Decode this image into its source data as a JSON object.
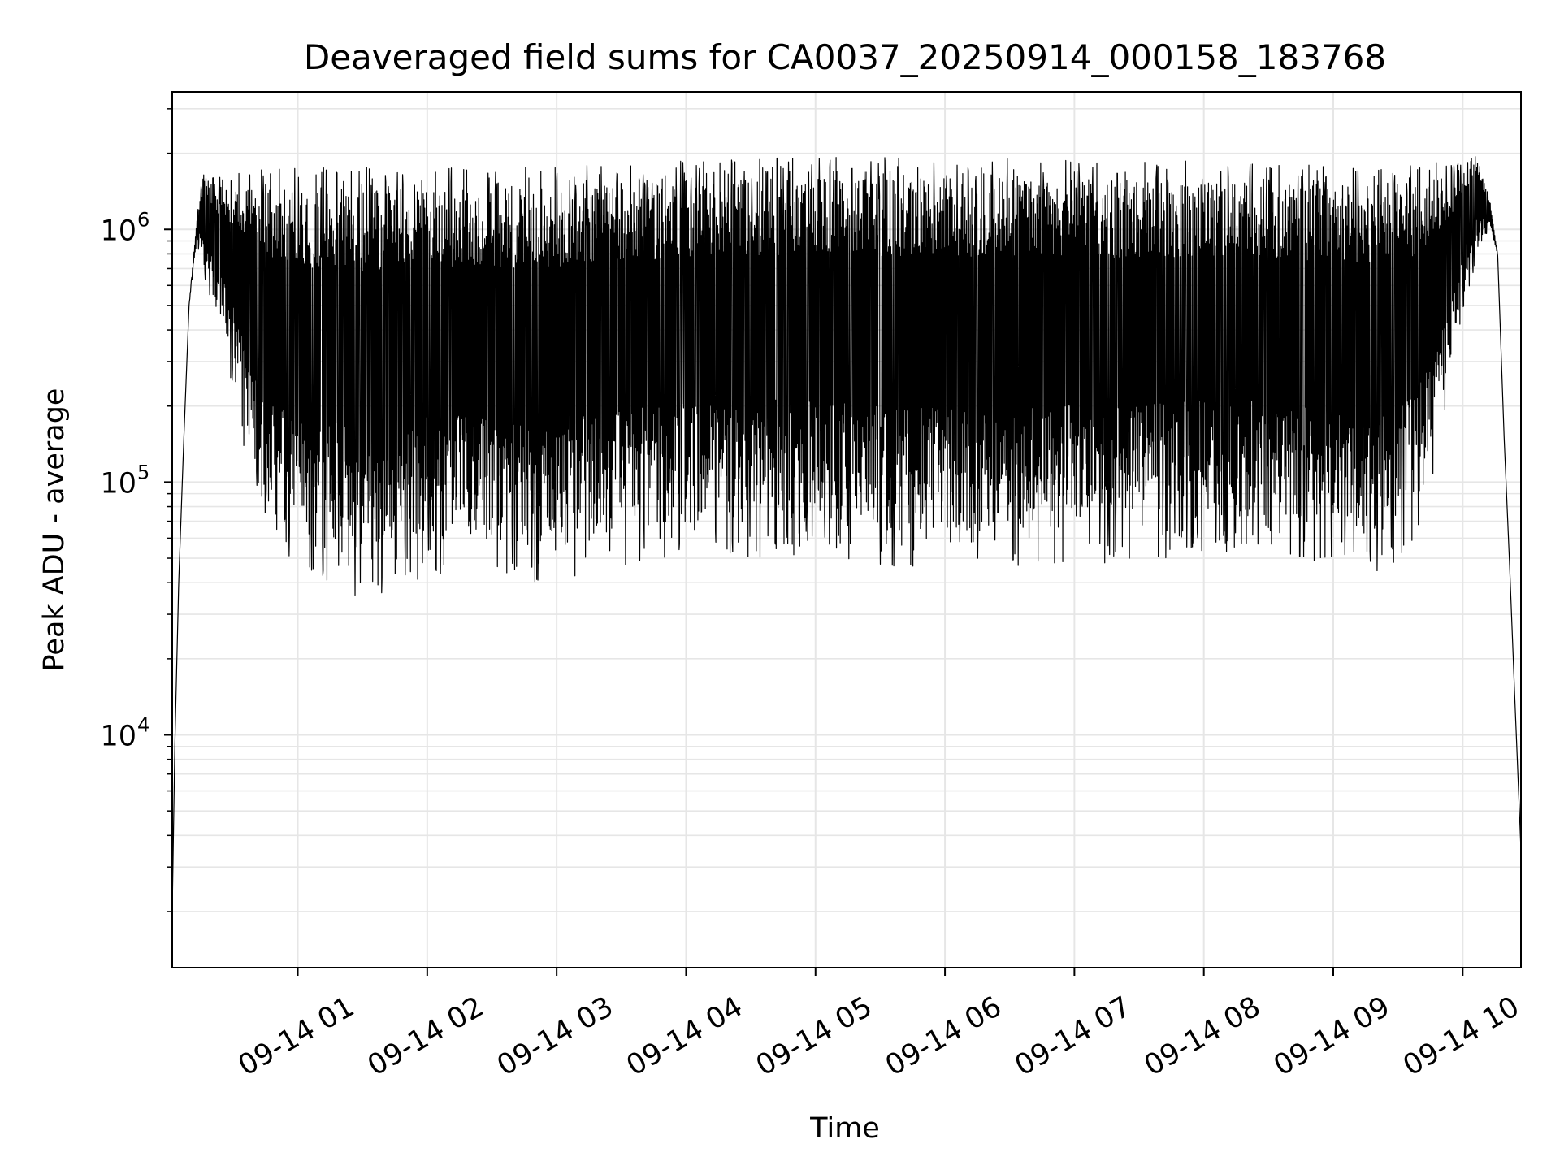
{
  "chart_data": {
    "type": "line",
    "title": "Deaveraged field sums for CA0037_20250914_000158_183768",
    "xlabel": "Time",
    "ylabel": "Peak ADU - average",
    "yscale": "log",
    "ylim": [
      1200,
      3500000
    ],
    "xlim_hours": [
      0.03,
      10.45
    ],
    "grid": true,
    "line_color": "#000000",
    "grid_color": "#e6e6e6",
    "x_ticks": [
      {
        "label": "09-14 01",
        "hour": 1
      },
      {
        "label": "09-14 02",
        "hour": 2
      },
      {
        "label": "09-14 03",
        "hour": 3
      },
      {
        "label": "09-14 04",
        "hour": 4
      },
      {
        "label": "09-14 05",
        "hour": 5
      },
      {
        "label": "09-14 06",
        "hour": 6
      },
      {
        "label": "09-14 07",
        "hour": 7
      },
      {
        "label": "09-14 08",
        "hour": 8
      },
      {
        "label": "09-14 09",
        "hour": 9
      },
      {
        "label": "09-14 10",
        "hour": 10
      }
    ],
    "y_ticks": [
      {
        "base": "10",
        "exp": "4",
        "value": 10000
      },
      {
        "base": "10",
        "exp": "5",
        "value": 100000
      },
      {
        "base": "10",
        "exp": "6",
        "value": 1000000
      }
    ],
    "series": [
      {
        "upper_envelope": [
          [
            0.03,
            2000
          ],
          [
            0.05,
            9000
          ],
          [
            0.08,
            40000
          ],
          [
            0.12,
            150000
          ],
          [
            0.16,
            500000
          ],
          [
            0.22,
            1100000
          ],
          [
            0.28,
            1800000
          ],
          [
            0.35,
            1500000
          ],
          [
            0.5,
            1500000
          ],
          [
            1.0,
            1450000
          ],
          [
            2.0,
            1450000
          ],
          [
            3.0,
            1450000
          ],
          [
            4.0,
            1550000
          ],
          [
            5.0,
            1600000
          ],
          [
            6.0,
            1600000
          ],
          [
            7.0,
            1550000
          ],
          [
            8.0,
            1550000
          ],
          [
            9.0,
            1500000
          ],
          [
            9.6,
            1500000
          ],
          [
            9.95,
            1700000
          ],
          [
            10.1,
            2000000
          ],
          [
            10.2,
            1400000
          ],
          [
            10.27,
            800000
          ],
          [
            10.32,
            150000
          ],
          [
            10.36,
            50000
          ],
          [
            10.4,
            15000
          ],
          [
            10.45,
            3500
          ]
        ],
        "lower_envelope": [
          [
            0.03,
            2000
          ],
          [
            0.05,
            9000
          ],
          [
            0.08,
            40000
          ],
          [
            0.12,
            150000
          ],
          [
            0.16,
            500000
          ],
          [
            0.22,
            900000
          ],
          [
            0.3,
            600000
          ],
          [
            0.45,
            350000
          ],
          [
            0.6,
            150000
          ],
          [
            0.8,
            70000
          ],
          [
            1.0,
            55000
          ],
          [
            1.5,
            45000
          ],
          [
            2.0,
            55000
          ],
          [
            2.5,
            55000
          ],
          [
            3.0,
            50000
          ],
          [
            3.5,
            60000
          ],
          [
            4.0,
            65000
          ],
          [
            4.5,
            65000
          ],
          [
            5.0,
            65000
          ],
          [
            5.5,
            60000
          ],
          [
            6.0,
            60000
          ],
          [
            6.5,
            60000
          ],
          [
            7.0,
            62000
          ],
          [
            7.5,
            62000
          ],
          [
            8.0,
            68000
          ],
          [
            8.5,
            68000
          ],
          [
            9.0,
            60000
          ],
          [
            9.3,
            55000
          ],
          [
            9.5,
            60000
          ],
          [
            9.7,
            90000
          ],
          [
            9.85,
            200000
          ],
          [
            10.0,
            500000
          ],
          [
            10.1,
            800000
          ],
          [
            10.2,
            1000000
          ],
          [
            10.27,
            800000
          ],
          [
            10.32,
            150000
          ],
          [
            10.36,
            50000
          ],
          [
            10.4,
            15000
          ],
          [
            10.45,
            3500
          ]
        ]
      }
    ]
  }
}
